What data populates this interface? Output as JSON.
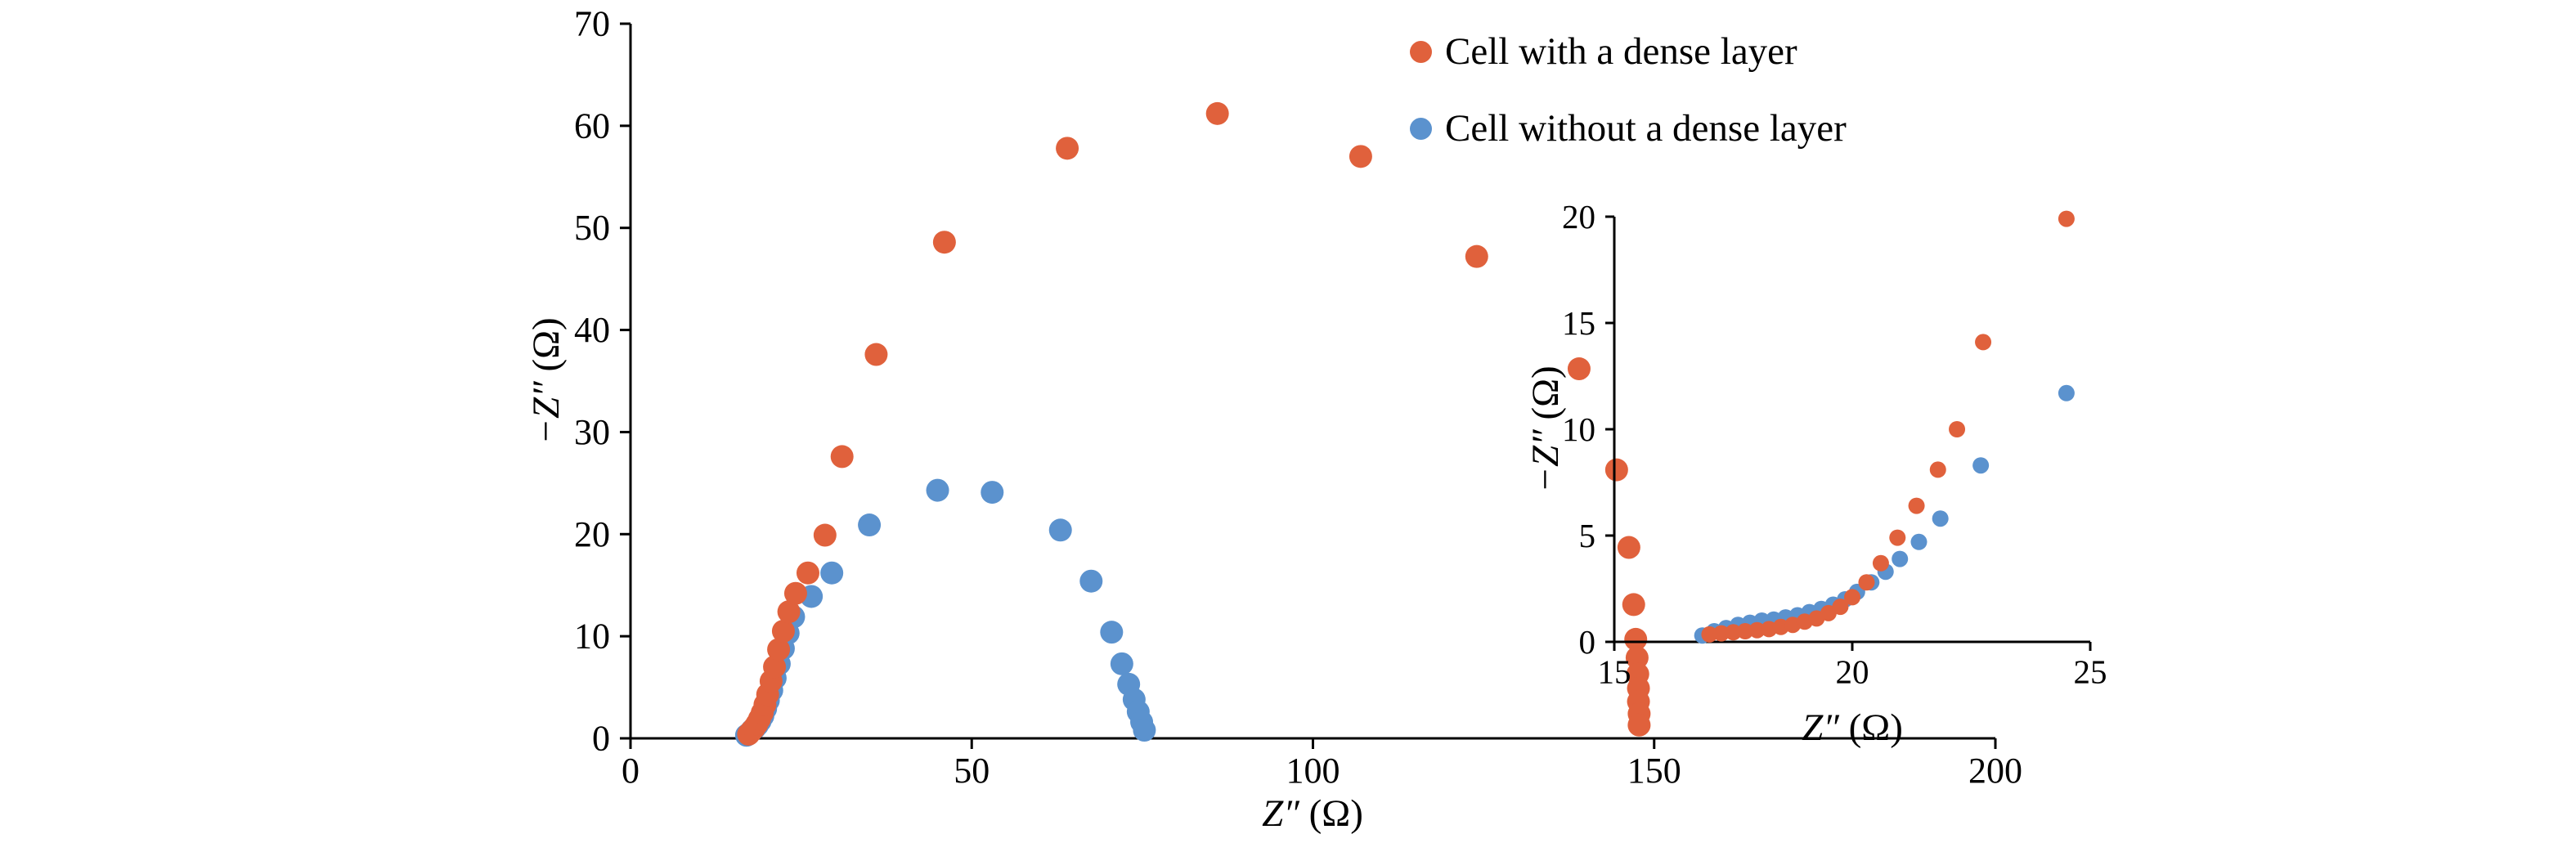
{
  "legend": {
    "items": [
      {
        "label": "Cell with a dense layer",
        "color": "#E0613C"
      },
      {
        "label": "Cell without a dense layer",
        "color": "#5B92CE"
      }
    ]
  },
  "axes": {
    "main": {
      "x_sym": "Z″",
      "x_unit": " (Ω)",
      "y_sym": "−Z″",
      "y_unit": " (Ω)"
    },
    "inset": {
      "x_sym": "Z″",
      "x_unit": " (Ω)",
      "y_sym": "−Z″",
      "y_unit": " (Ω)"
    }
  },
  "chart_data": [
    {
      "id": "main",
      "type": "scatter",
      "title": "",
      "xlabel": "Z″ (Ω)",
      "ylabel": "−Z″ (Ω)",
      "xlim": [
        0,
        200
      ],
      "ylim": [
        0,
        70
      ],
      "xticks": [
        0,
        50,
        100,
        150,
        200
      ],
      "yticks": [
        0,
        10,
        20,
        30,
        40,
        50,
        60,
        70
      ],
      "grid": false,
      "legend_position": "top-right",
      "series": [
        {
          "name": "Cell with a dense layer",
          "color": "#E0613C",
          "points": [
            [
              17.3,
              0.4
            ],
            [
              17.7,
              0.7
            ],
            [
              18.1,
              1.0
            ],
            [
              18.5,
              1.4
            ],
            [
              18.9,
              1.9
            ],
            [
              19.3,
              2.5
            ],
            [
              19.7,
              3.3
            ],
            [
              20.1,
              4.3
            ],
            [
              20.6,
              5.6
            ],
            [
              21.1,
              7.0
            ],
            [
              21.7,
              8.7
            ],
            [
              22.4,
              10.5
            ],
            [
              23.2,
              12.4
            ],
            [
              24.2,
              14.2
            ],
            [
              26,
              16.2
            ],
            [
              28.5,
              19.9
            ],
            [
              31,
              27.6
            ],
            [
              36,
              37.6
            ],
            [
              46,
              48.6
            ],
            [
              64,
              57.8
            ],
            [
              86,
              61.2
            ],
            [
              107,
              57.0
            ],
            [
              124,
              47.2
            ],
            [
              139,
              36.2
            ],
            [
              144.5,
              26.3
            ],
            [
              146.3,
              18.7
            ],
            [
              147,
              13.1
            ],
            [
              147.3,
              9.7
            ],
            [
              147.5,
              7.9
            ],
            [
              147.6,
              6.3
            ],
            [
              147.7,
              4.9
            ],
            [
              147.7,
              3.6
            ],
            [
              147.8,
              2.4
            ],
            [
              147.8,
              1.3
            ]
          ]
        },
        {
          "name": "Cell without a dense layer",
          "color": "#5B92CE",
          "points": [
            [
              17.0,
              0.3
            ],
            [
              17.4,
              0.5
            ],
            [
              17.8,
              0.8
            ],
            [
              18.2,
              1.0
            ],
            [
              18.6,
              1.3
            ],
            [
              19.0,
              1.7
            ],
            [
              19.4,
              2.2
            ],
            [
              19.8,
              2.9
            ],
            [
              20.2,
              3.7
            ],
            [
              20.7,
              4.7
            ],
            [
              21.2,
              5.9
            ],
            [
              21.8,
              7.3
            ],
            [
              22.4,
              8.8
            ],
            [
              23.1,
              10.3
            ],
            [
              23.9,
              11.9
            ],
            [
              26.5,
              13.9
            ],
            [
              29.5,
              16.2
            ],
            [
              35,
              20.9
            ],
            [
              45,
              24.3
            ],
            [
              53,
              24.1
            ],
            [
              63,
              20.4
            ],
            [
              67.5,
              15.4
            ],
            [
              70.5,
              10.4
            ],
            [
              72,
              7.3
            ],
            [
              73,
              5.3
            ],
            [
              73.8,
              3.8
            ],
            [
              74.4,
              2.6
            ],
            [
              74.9,
              1.6
            ],
            [
              75.3,
              0.8
            ]
          ]
        }
      ]
    },
    {
      "id": "inset",
      "type": "scatter",
      "title": "",
      "xlabel": "Z″ (Ω)",
      "ylabel": "−Z″ (Ω)",
      "xlim": [
        15,
        25
      ],
      "ylim": [
        0,
        20
      ],
      "xticks": [
        15,
        20,
        25
      ],
      "yticks": [
        0,
        5,
        10,
        15,
        20
      ],
      "grid": false,
      "series": [
        {
          "name": "Cell with a dense layer",
          "color": "#E0613C",
          "points": [
            [
              17.0,
              0.35
            ],
            [
              17.25,
              0.4
            ],
            [
              17.5,
              0.45
            ],
            [
              17.75,
              0.5
            ],
            [
              18.0,
              0.55
            ],
            [
              18.25,
              0.6
            ],
            [
              18.5,
              0.7
            ],
            [
              18.75,
              0.8
            ],
            [
              19.0,
              0.95
            ],
            [
              19.25,
              1.1
            ],
            [
              19.5,
              1.35
            ],
            [
              19.75,
              1.65
            ],
            [
              20.0,
              2.1
            ],
            [
              20.3,
              2.8
            ],
            [
              20.6,
              3.7
            ],
            [
              20.95,
              4.9
            ],
            [
              21.35,
              6.4
            ],
            [
              21.8,
              8.1
            ],
            [
              22.2,
              10.0
            ],
            [
              22.75,
              14.1
            ],
            [
              24.5,
              19.9
            ]
          ]
        },
        {
          "name": "Cell without a dense layer",
          "color": "#5B92CE",
          "points": [
            [
              16.85,
              0.3
            ],
            [
              17.1,
              0.5
            ],
            [
              17.35,
              0.65
            ],
            [
              17.6,
              0.8
            ],
            [
              17.85,
              0.9
            ],
            [
              18.1,
              1.0
            ],
            [
              18.35,
              1.05
            ],
            [
              18.6,
              1.15
            ],
            [
              18.85,
              1.25
            ],
            [
              19.1,
              1.4
            ],
            [
              19.35,
              1.55
            ],
            [
              19.6,
              1.75
            ],
            [
              19.85,
              2.0
            ],
            [
              20.1,
              2.35
            ],
            [
              20.4,
              2.8
            ],
            [
              20.7,
              3.3
            ],
            [
              21.0,
              3.9
            ],
            [
              21.4,
              4.7
            ],
            [
              21.85,
              5.8
            ],
            [
              22.7,
              8.3
            ],
            [
              24.5,
              11.7
            ]
          ]
        }
      ]
    }
  ]
}
